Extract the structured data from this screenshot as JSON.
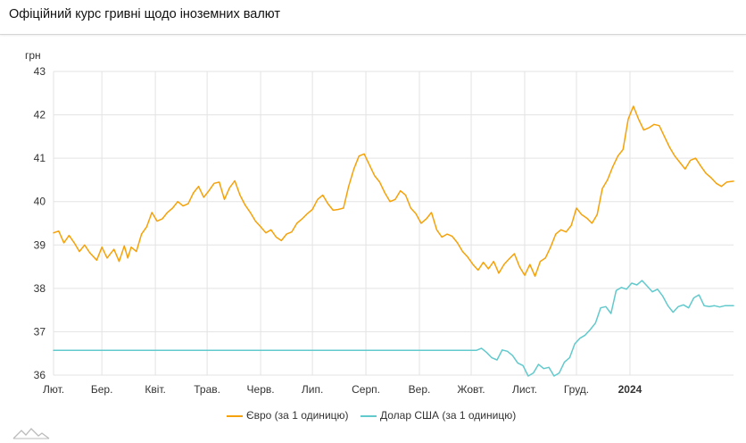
{
  "header": {
    "title": "Офіційний курс гривні щодо іноземних валют"
  },
  "icons": {
    "logo": "mountain-logo-icon"
  },
  "chart_data": {
    "type": "line",
    "ylabel": "грн",
    "ylim": [
      36,
      43
    ],
    "yticks": [
      36,
      37,
      38,
      39,
      40,
      41,
      42,
      43
    ],
    "grid": true,
    "legend_position": "bottom",
    "x_start": "2023-02-01",
    "x_end": "2024-03-01",
    "xticks": [
      {
        "label": "Лют.",
        "date": "2023-02-01",
        "bold": false
      },
      {
        "label": "Бер.",
        "date": "2023-03-01",
        "bold": false
      },
      {
        "label": "Квіт.",
        "date": "2023-04-01",
        "bold": false
      },
      {
        "label": "Трав.",
        "date": "2023-05-01",
        "bold": false
      },
      {
        "label": "Черв.",
        "date": "2023-06-01",
        "bold": false
      },
      {
        "label": "Лип.",
        "date": "2023-07-01",
        "bold": false
      },
      {
        "label": "Серп.",
        "date": "2023-08-01",
        "bold": false
      },
      {
        "label": "Вер.",
        "date": "2023-09-01",
        "bold": false
      },
      {
        "label": "Жовт.",
        "date": "2023-10-01",
        "bold": false
      },
      {
        "label": "Лист.",
        "date": "2023-11-01",
        "bold": false
      },
      {
        "label": "Груд.",
        "date": "2023-12-01",
        "bold": false
      },
      {
        "label": "2024",
        "date": "2024-01-01",
        "bold": true
      }
    ],
    "series": [
      {
        "name": "Євро (за 1 одиницю)",
        "color": "#f5a20a",
        "points": [
          [
            "2023-02-01",
            39.28
          ],
          [
            "2023-02-04",
            39.32
          ],
          [
            "2023-02-07",
            39.05
          ],
          [
            "2023-02-10",
            39.22
          ],
          [
            "2023-02-13",
            39.05
          ],
          [
            "2023-02-16",
            38.85
          ],
          [
            "2023-02-19",
            39.0
          ],
          [
            "2023-02-22",
            38.82
          ],
          [
            "2023-02-26",
            38.65
          ],
          [
            "2023-03-01",
            38.95
          ],
          [
            "2023-03-04",
            38.7
          ],
          [
            "2023-03-08",
            38.9
          ],
          [
            "2023-03-11",
            38.62
          ],
          [
            "2023-03-14",
            38.98
          ],
          [
            "2023-03-16",
            38.7
          ],
          [
            "2023-03-18",
            38.95
          ],
          [
            "2023-03-21",
            38.85
          ],
          [
            "2023-03-24",
            39.25
          ],
          [
            "2023-03-27",
            39.42
          ],
          [
            "2023-03-30",
            39.75
          ],
          [
            "2023-04-02",
            39.55
          ],
          [
            "2023-04-05",
            39.6
          ],
          [
            "2023-04-08",
            39.75
          ],
          [
            "2023-04-11",
            39.85
          ],
          [
            "2023-04-14",
            40.0
          ],
          [
            "2023-04-17",
            39.9
          ],
          [
            "2023-04-20",
            39.95
          ],
          [
            "2023-04-23",
            40.2
          ],
          [
            "2023-04-26",
            40.35
          ],
          [
            "2023-04-29",
            40.1
          ],
          [
            "2023-05-02",
            40.25
          ],
          [
            "2023-05-05",
            40.42
          ],
          [
            "2023-05-08",
            40.45
          ],
          [
            "2023-05-11",
            40.05
          ],
          [
            "2023-05-14",
            40.32
          ],
          [
            "2023-05-17",
            40.48
          ],
          [
            "2023-05-20",
            40.15
          ],
          [
            "2023-05-23",
            39.92
          ],
          [
            "2023-05-26",
            39.75
          ],
          [
            "2023-05-29",
            39.55
          ],
          [
            "2023-06-01",
            39.42
          ],
          [
            "2023-06-04",
            39.28
          ],
          [
            "2023-06-07",
            39.35
          ],
          [
            "2023-06-10",
            39.18
          ],
          [
            "2023-06-13",
            39.1
          ],
          [
            "2023-06-16",
            39.25
          ],
          [
            "2023-06-19",
            39.3
          ],
          [
            "2023-06-22",
            39.5
          ],
          [
            "2023-06-25",
            39.6
          ],
          [
            "2023-06-28",
            39.72
          ],
          [
            "2023-07-01",
            39.82
          ],
          [
            "2023-07-04",
            40.05
          ],
          [
            "2023-07-07",
            40.15
          ],
          [
            "2023-07-10",
            39.95
          ],
          [
            "2023-07-13",
            39.8
          ],
          [
            "2023-07-16",
            39.82
          ],
          [
            "2023-07-19",
            39.85
          ],
          [
            "2023-07-22",
            40.35
          ],
          [
            "2023-07-25",
            40.75
          ],
          [
            "2023-07-28",
            41.05
          ],
          [
            "2023-07-31",
            41.1
          ],
          [
            "2023-08-03",
            40.85
          ],
          [
            "2023-08-06",
            40.6
          ],
          [
            "2023-08-09",
            40.45
          ],
          [
            "2023-08-12",
            40.2
          ],
          [
            "2023-08-15",
            40.0
          ],
          [
            "2023-08-18",
            40.05
          ],
          [
            "2023-08-21",
            40.25
          ],
          [
            "2023-08-24",
            40.15
          ],
          [
            "2023-08-27",
            39.85
          ],
          [
            "2023-08-30",
            39.72
          ],
          [
            "2023-09-02",
            39.5
          ],
          [
            "2023-09-05",
            39.6
          ],
          [
            "2023-09-08",
            39.75
          ],
          [
            "2023-09-11",
            39.35
          ],
          [
            "2023-09-14",
            39.18
          ],
          [
            "2023-09-17",
            39.25
          ],
          [
            "2023-09-20",
            39.2
          ],
          [
            "2023-09-23",
            39.05
          ],
          [
            "2023-09-26",
            38.85
          ],
          [
            "2023-09-29",
            38.72
          ],
          [
            "2023-10-02",
            38.55
          ],
          [
            "2023-10-05",
            38.42
          ],
          [
            "2023-10-08",
            38.6
          ],
          [
            "2023-10-11",
            38.45
          ],
          [
            "2023-10-14",
            38.62
          ],
          [
            "2023-10-17",
            38.35
          ],
          [
            "2023-10-20",
            38.55
          ],
          [
            "2023-10-23",
            38.68
          ],
          [
            "2023-10-26",
            38.8
          ],
          [
            "2023-10-29",
            38.5
          ],
          [
            "2023-11-01",
            38.3
          ],
          [
            "2023-11-04",
            38.55
          ],
          [
            "2023-11-07",
            38.28
          ],
          [
            "2023-11-10",
            38.62
          ],
          [
            "2023-11-13",
            38.7
          ],
          [
            "2023-11-16",
            38.95
          ],
          [
            "2023-11-19",
            39.25
          ],
          [
            "2023-11-22",
            39.35
          ],
          [
            "2023-11-25",
            39.3
          ],
          [
            "2023-11-28",
            39.45
          ],
          [
            "2023-12-01",
            39.85
          ],
          [
            "2023-12-04",
            39.7
          ],
          [
            "2023-12-07",
            39.62
          ],
          [
            "2023-12-10",
            39.5
          ],
          [
            "2023-12-13",
            39.7
          ],
          [
            "2023-12-16",
            40.3
          ],
          [
            "2023-12-19",
            40.5
          ],
          [
            "2023-12-22",
            40.8
          ],
          [
            "2023-12-25",
            41.05
          ],
          [
            "2023-12-28",
            41.2
          ],
          [
            "2023-12-31",
            41.9
          ],
          [
            "2024-01-03",
            42.2
          ],
          [
            "2024-01-06",
            41.9
          ],
          [
            "2024-01-09",
            41.65
          ],
          [
            "2024-01-12",
            41.7
          ],
          [
            "2024-01-15",
            41.78
          ],
          [
            "2024-01-18",
            41.75
          ],
          [
            "2024-01-21",
            41.5
          ],
          [
            "2024-01-24",
            41.25
          ],
          [
            "2024-01-27",
            41.05
          ],
          [
            "2024-01-30",
            40.9
          ],
          [
            "2024-02-02",
            40.75
          ],
          [
            "2024-02-05",
            40.95
          ],
          [
            "2024-02-08",
            41.0
          ],
          [
            "2024-02-11",
            40.82
          ],
          [
            "2024-02-14",
            40.65
          ],
          [
            "2024-02-17",
            40.55
          ],
          [
            "2024-02-20",
            40.42
          ],
          [
            "2024-02-23",
            40.35
          ],
          [
            "2024-02-26",
            40.45
          ],
          [
            "2024-03-01",
            40.47
          ]
        ]
      },
      {
        "name": "Долар США (за 1 одиницю)",
        "color": "#62c9cc",
        "points": [
          [
            "2023-02-01",
            36.57
          ],
          [
            "2023-10-04",
            36.57
          ],
          [
            "2023-10-07",
            36.62
          ],
          [
            "2023-10-10",
            36.52
          ],
          [
            "2023-10-13",
            36.4
          ],
          [
            "2023-10-16",
            36.35
          ],
          [
            "2023-10-19",
            36.58
          ],
          [
            "2023-10-22",
            36.55
          ],
          [
            "2023-10-25",
            36.45
          ],
          [
            "2023-10-28",
            36.28
          ],
          [
            "2023-10-31",
            36.22
          ],
          [
            "2023-11-03",
            35.98
          ],
          [
            "2023-11-06",
            36.05
          ],
          [
            "2023-11-09",
            36.25
          ],
          [
            "2023-11-12",
            36.15
          ],
          [
            "2023-11-15",
            36.18
          ],
          [
            "2023-11-18",
            35.98
          ],
          [
            "2023-11-21",
            36.05
          ],
          [
            "2023-11-24",
            36.3
          ],
          [
            "2023-11-27",
            36.4
          ],
          [
            "2023-11-30",
            36.72
          ],
          [
            "2023-12-03",
            36.85
          ],
          [
            "2023-12-06",
            36.92
          ],
          [
            "2023-12-09",
            37.05
          ],
          [
            "2023-12-12",
            37.2
          ],
          [
            "2023-12-15",
            37.55
          ],
          [
            "2023-12-18",
            37.58
          ],
          [
            "2023-12-21",
            37.42
          ],
          [
            "2023-12-24",
            37.95
          ],
          [
            "2023-12-27",
            38.02
          ],
          [
            "2023-12-30",
            37.98
          ],
          [
            "2024-01-02",
            38.12
          ],
          [
            "2024-01-05",
            38.08
          ],
          [
            "2024-01-08",
            38.18
          ],
          [
            "2024-01-11",
            38.05
          ],
          [
            "2024-01-14",
            37.92
          ],
          [
            "2024-01-17",
            37.98
          ],
          [
            "2024-01-20",
            37.82
          ],
          [
            "2024-01-23",
            37.6
          ],
          [
            "2024-01-26",
            37.45
          ],
          [
            "2024-01-29",
            37.58
          ],
          [
            "2024-02-01",
            37.62
          ],
          [
            "2024-02-04",
            37.55
          ],
          [
            "2024-02-07",
            37.78
          ],
          [
            "2024-02-10",
            37.85
          ],
          [
            "2024-02-13",
            37.6
          ],
          [
            "2024-02-16",
            37.58
          ],
          [
            "2024-02-19",
            37.6
          ],
          [
            "2024-02-22",
            37.57
          ],
          [
            "2024-02-25",
            37.6
          ],
          [
            "2024-03-01",
            37.6
          ]
        ]
      }
    ]
  }
}
